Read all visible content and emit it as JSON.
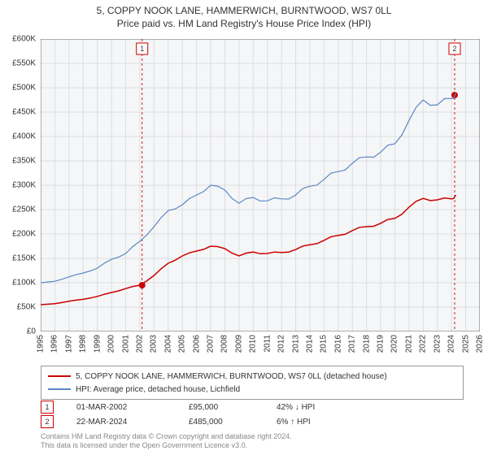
{
  "title": {
    "line1": "5, COPPY NOOK LANE, HAMMERWICH, BURNTWOOD, WS7 0LL",
    "line2": "Price paid vs. HM Land Registry's House Price Index (HPI)"
  },
  "chart": {
    "type": "line",
    "plot_background": "#f5f6f7",
    "grid_color": "#dcdde0",
    "axis_color": "#666666",
    "x_min": 1995,
    "x_max": 2026,
    "x_ticks": [
      1995,
      1996,
      1997,
      1998,
      1999,
      2000,
      2001,
      2002,
      2003,
      2004,
      2005,
      2006,
      2007,
      2008,
      2009,
      2010,
      2011,
      2012,
      2013,
      2014,
      2015,
      2016,
      2017,
      2018,
      2019,
      2020,
      2021,
      2022,
      2023,
      2024,
      2025,
      2026
    ],
    "y_min": 0,
    "y_max": 600000,
    "y_tick_step": 50000,
    "y_tick_labels": [
      "£0",
      "£50K",
      "£100K",
      "£150K",
      "£200K",
      "£250K",
      "£300K",
      "£350K",
      "£400K",
      "£450K",
      "£500K",
      "£550K",
      "£600K"
    ],
    "series": [
      {
        "name": "5, COPPY NOOK LANE, HAMMERWICH, BURNTWOOD, WS7 0LL (detached house)",
        "color": "#cc0000",
        "line_width": 1.5,
        "x": [
          1995,
          1996,
          1997,
          1998,
          1999,
          2000,
          2001,
          2002,
          2003,
          2004,
          2005,
          2006,
          2007,
          2008,
          2009,
          2010,
          2011,
          2012,
          2013,
          2014,
          2015,
          2016,
          2017,
          2018,
          2019,
          2020,
          2021,
          2022,
          2023,
          2024,
          2024.3
        ],
        "y": [
          55000,
          57000,
          62000,
          66000,
          72000,
          80000,
          88000,
          95000,
          115000,
          140000,
          155000,
          165000,
          175000,
          170000,
          155000,
          163000,
          160000,
          162000,
          168000,
          178000,
          187000,
          197000,
          207000,
          215000,
          222000,
          232000,
          255000,
          273000,
          270000,
          272000,
          280000
        ]
      },
      {
        "name": "HPI: Average price, detached house, Lichfield",
        "color": "#5b87c7",
        "line_width": 1.2,
        "x": [
          1995,
          1996,
          1997,
          1998,
          1999,
          2000,
          2001,
          2002,
          2003,
          2004,
          2005,
          2006,
          2007,
          2008,
          2009,
          2010,
          2011,
          2012,
          2013,
          2014,
          2015,
          2016,
          2017,
          2018,
          2019,
          2020,
          2021,
          2022,
          2023,
          2024,
          2024.3
        ],
        "y": [
          100000,
          103000,
          112000,
          120000,
          130000,
          148000,
          160000,
          185000,
          215000,
          248000,
          260000,
          280000,
          300000,
          290000,
          263000,
          275000,
          268000,
          272000,
          280000,
          298000,
          312000,
          328000,
          345000,
          358000,
          368000,
          385000,
          433000,
          475000,
          465000,
          478000,
          490000
        ]
      }
    ],
    "markers": [
      {
        "id": "1",
        "x": 2002.16,
        "y": 95000,
        "badge_top_y": 580000,
        "line_color": "#cc0000",
        "dot_color": "#cc0000",
        "date": "01-MAR-2002",
        "price": "£95,000",
        "diff": "42% ↓ HPI"
      },
      {
        "id": "2",
        "x": 2024.22,
        "y": 485000,
        "badge_top_y": 580000,
        "line_color": "#cc0000",
        "dot_color": "#cc0000",
        "date": "22-MAR-2024",
        "price": "£485,000",
        "diff": "6% ↑ HPI"
      }
    ]
  },
  "legend": {
    "items": [
      {
        "color": "#cc0000",
        "label": "5, COPPY NOOK LANE, HAMMERWICH, BURNTWOOD, WS7 0LL (detached house)"
      },
      {
        "color": "#5b87c7",
        "label": "HPI: Average price, detached house, Lichfield"
      }
    ]
  },
  "footer": {
    "line1": "Contains HM Land Registry data © Crown copyright and database right 2024.",
    "line2": "This data is licensed under the Open Government Licence v3.0."
  }
}
